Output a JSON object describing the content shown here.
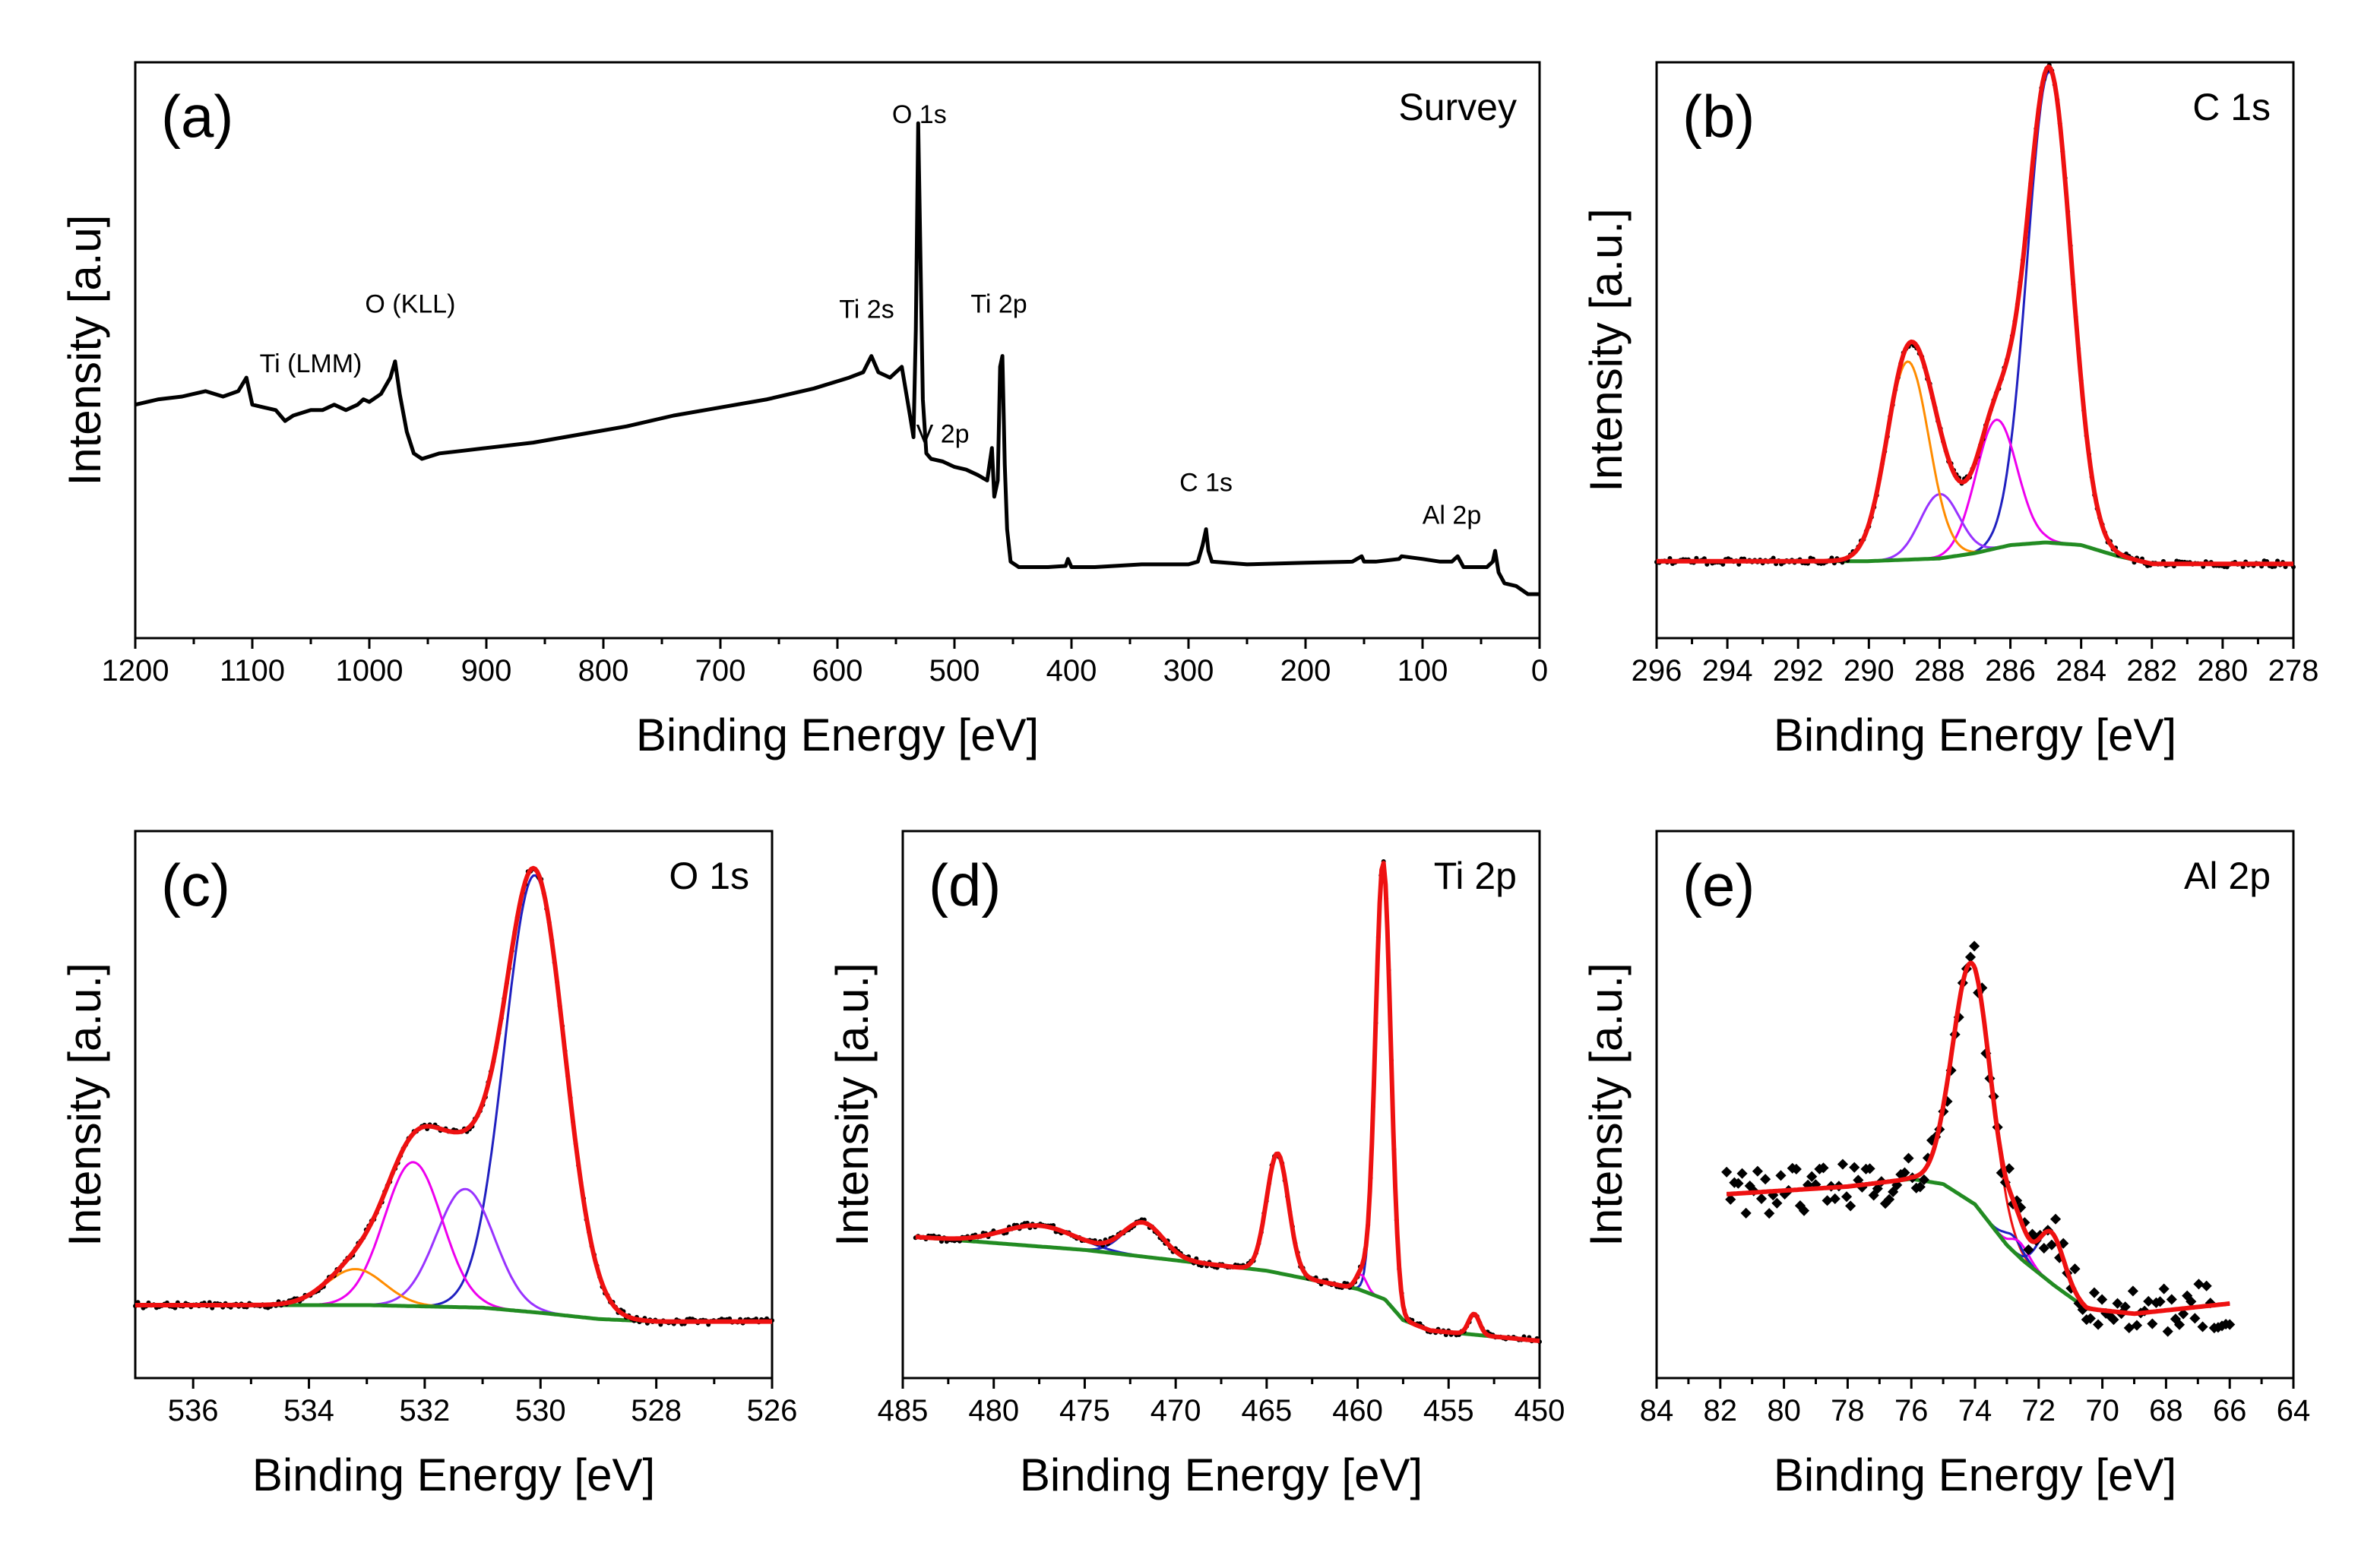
{
  "chart_data": [
    {
      "id": "a",
      "type": "line",
      "panel_label": "(a)",
      "corner_label": "Survey",
      "xlabel": "Binding Energy [eV]",
      "ylabel": "Intensity [a.u]",
      "xlim": [
        1200,
        0
      ],
      "ylim": [
        0,
        100
      ],
      "xticks": [
        1200,
        1100,
        1000,
        900,
        800,
        700,
        600,
        500,
        400,
        300,
        200,
        100,
        0
      ],
      "tick_labels": [
        "1200",
        "1100",
        "1000",
        "900",
        "800",
        "700",
        "600",
        "500",
        "400",
        "300",
        "200",
        "100",
        "0"
      ],
      "peak_labels": [
        {
          "text": "O 1s",
          "x": 530,
          "y": 93
        },
        {
          "text": "O (KLL)",
          "x": 965,
          "y": 58
        },
        {
          "text": "Ti (LMM)",
          "x": 1050,
          "y": 47
        },
        {
          "text": "Ti 2s",
          "x": 575,
          "y": 57
        },
        {
          "text": "Ti 2p",
          "x": 462,
          "y": 58
        },
        {
          "text": "V 2p",
          "x": 510,
          "y": 34
        },
        {
          "text": "C 1s",
          "x": 285,
          "y": 25
        },
        {
          "text": "Al 2p",
          "x": 75,
          "y": 19
        }
      ],
      "series": [
        {
          "name": "Survey",
          "color": "#000000",
          "points": [
            [
              1200,
              41
            ],
            [
              1180,
              42
            ],
            [
              1160,
              42.5
            ],
            [
              1140,
              43.5
            ],
            [
              1125,
              42.5
            ],
            [
              1112,
              43.5
            ],
            [
              1105,
              46
            ],
            [
              1100,
              41
            ],
            [
              1090,
              40.5
            ],
            [
              1080,
              40
            ],
            [
              1072,
              38
            ],
            [
              1065,
              39
            ],
            [
              1050,
              40
            ],
            [
              1040,
              40
            ],
            [
              1030,
              41
            ],
            [
              1020,
              40
            ],
            [
              1010,
              41
            ],
            [
              1005,
              42
            ],
            [
              1000,
              41.5
            ],
            [
              990,
              43
            ],
            [
              982,
              46
            ],
            [
              978,
              49
            ],
            [
              974,
              43
            ],
            [
              968,
              36
            ],
            [
              962,
              32
            ],
            [
              955,
              31
            ],
            [
              940,
              32
            ],
            [
              920,
              32.5
            ],
            [
              900,
              33
            ],
            [
              860,
              34
            ],
            [
              820,
              35.5
            ],
            [
              780,
              37
            ],
            [
              740,
              39
            ],
            [
              700,
              40.5
            ],
            [
              660,
              42
            ],
            [
              620,
              44
            ],
            [
              590,
              46
            ],
            [
              578,
              47
            ],
            [
              571,
              50
            ],
            [
              565,
              47
            ],
            [
              555,
              46
            ],
            [
              545,
              48
            ],
            [
              538,
              39
            ],
            [
              535,
              35
            ],
            [
              533,
              55
            ],
            [
              531,
              93
            ],
            [
              529,
              68
            ],
            [
              527,
              42
            ],
            [
              524,
              32
            ],
            [
              520,
              31
            ],
            [
              510,
              30.5
            ],
            [
              500,
              29.5
            ],
            [
              490,
              29
            ],
            [
              480,
              28
            ],
            [
              472,
              27
            ],
            [
              468,
              33
            ],
            [
              466,
              24
            ],
            [
              463,
              27
            ],
            [
              461,
              48
            ],
            [
              459,
              50
            ],
            [
              457,
              30
            ],
            [
              455,
              18
            ],
            [
              452,
              12
            ],
            [
              445,
              11
            ],
            [
              420,
              11
            ],
            [
              405,
              11.2
            ],
            [
              403,
              12.5
            ],
            [
              400,
              11
            ],
            [
              380,
              11
            ],
            [
              340,
              11.5
            ],
            [
              300,
              11.5
            ],
            [
              292,
              12
            ],
            [
              288,
              15
            ],
            [
              285,
              18
            ],
            [
              283,
              14
            ],
            [
              280,
              12
            ],
            [
              250,
              11.5
            ],
            [
              200,
              11.8
            ],
            [
              160,
              12
            ],
            [
              152,
              13
            ],
            [
              150,
              12
            ],
            [
              140,
              12
            ],
            [
              120,
              12.5
            ],
            [
              118,
              13
            ],
            [
              100,
              12.5
            ],
            [
              85,
              12
            ],
            [
              75,
              12
            ],
            [
              70,
              13
            ],
            [
              65,
              11
            ],
            [
              55,
              11
            ],
            [
              45,
              11
            ],
            [
              40,
              12
            ],
            [
              38,
              14
            ],
            [
              35,
              10
            ],
            [
              30,
              8
            ],
            [
              20,
              7.5
            ],
            [
              10,
              6
            ],
            [
              0,
              6
            ]
          ]
        }
      ]
    },
    {
      "id": "b",
      "type": "line",
      "panel_label": "(b)",
      "corner_label": "C 1s",
      "xlabel": "Binding Energy [eV]",
      "ylabel": "Intensity [a.u.]",
      "xlim": [
        296,
        278
      ],
      "ylim": [
        0,
        100
      ],
      "xticks": [
        296,
        294,
        292,
        290,
        288,
        286,
        284,
        282,
        280,
        278
      ],
      "tick_labels": [
        "296",
        "294",
        "292",
        "290",
        "288",
        "286",
        "284",
        "282",
        "280",
        "278"
      ],
      "background": [
        [
          296,
          9
        ],
        [
          290,
          9
        ],
        [
          288,
          9.5
        ],
        [
          287,
          10.5
        ],
        [
          286,
          12
        ],
        [
          285,
          12.5
        ],
        [
          284,
          12
        ],
        [
          283,
          10
        ],
        [
          282,
          8.5
        ],
        [
          278,
          8.5
        ]
      ],
      "components": [
        {
          "center": 284.9,
          "height": 88,
          "width": 0.62,
          "color": "#2020c0"
        },
        {
          "center": 286.4,
          "height": 24,
          "width": 0.58,
          "color": "#ee00ee"
        },
        {
          "center": 288.0,
          "height": 12,
          "width": 0.55,
          "color": "#9933ff"
        },
        {
          "center": 288.9,
          "height": 37,
          "width": 0.6,
          "color": "#ff8c00"
        }
      ],
      "envelope_color": "#ee1111",
      "background_color": "#228b22",
      "points_color": "#000000"
    },
    {
      "id": "c",
      "type": "line",
      "panel_label": "(c)",
      "corner_label": "O 1s",
      "xlabel": "Binding Energy [eV]",
      "ylabel": "Intensity [a.u.]",
      "xlim": [
        537,
        526
      ],
      "ylim": [
        0,
        100
      ],
      "xticks": [
        536,
        534,
        532,
        530,
        528,
        526
      ],
      "tick_labels": [
        "536",
        "534",
        "532",
        "530",
        "528",
        "526"
      ],
      "background": [
        [
          537,
          11
        ],
        [
          533,
          11
        ],
        [
          531,
          10.5
        ],
        [
          530,
          9.5
        ],
        [
          529,
          8.3
        ],
        [
          528,
          7.8
        ],
        [
          526,
          7.8
        ]
      ],
      "components": [
        {
          "center": 530.1,
          "height": 85,
          "width": 0.52,
          "color": "#2020c0"
        },
        {
          "center": 531.3,
          "height": 23,
          "width": 0.5,
          "color": "#9933ff"
        },
        {
          "center": 532.2,
          "height": 28,
          "width": 0.5,
          "color": "#ee00ee"
        },
        {
          "center": 533.2,
          "height": 7,
          "width": 0.5,
          "color": "#ff8c00"
        }
      ],
      "envelope_color": "#ee1111",
      "background_color": "#228b22",
      "points_color": "#000000"
    },
    {
      "id": "d",
      "type": "line",
      "panel_label": "(d)",
      "corner_label": "Ti 2p",
      "xlabel": "Binding Energy [eV]",
      "ylabel": "Intensity [a.u.]",
      "xlim": [
        485,
        450
      ],
      "ylim": [
        0,
        100
      ],
      "xticks": [
        485,
        480,
        475,
        470,
        465,
        460,
        455,
        450
      ],
      "tick_labels": [
        "485",
        "480",
        "475",
        "470",
        "465",
        "460",
        "455",
        "450"
      ],
      "background": [
        [
          484.3,
          24
        ],
        [
          475,
          21.5
        ],
        [
          465,
          17.5
        ],
        [
          460,
          14
        ],
        [
          458.5,
          12
        ],
        [
          457.5,
          8
        ],
        [
          456,
          6
        ],
        [
          450,
          4
        ]
      ],
      "components": [
        {
          "center": 458.6,
          "height": 84,
          "width": 0.42,
          "color": "#2020c0"
        },
        {
          "center": 464.4,
          "height": 23,
          "width": 0.6,
          "color": "#2020c0"
        },
        {
          "center": 471.8,
          "height": 6.5,
          "width": 1.1,
          "color": "#2020c0"
        },
        {
          "center": 477.5,
          "height": 4,
          "width": 2.0,
          "color": "#2020c0"
        },
        {
          "center": 459.8,
          "height": 3,
          "width": 0.3,
          "color": "#ee00ee"
        },
        {
          "center": 453.6,
          "height": 4,
          "width": 0.3,
          "color": "#ee00ee"
        }
      ],
      "envelope_color": "#ee1111",
      "background_color": "#228b22",
      "points_color": "#000000"
    },
    {
      "id": "e",
      "type": "line",
      "panel_label": "(e)",
      "corner_label": "Al 2p",
      "xlabel": "Binding Energy [eV]",
      "ylabel": "Intensity [a.u.]",
      "xlim": [
        84,
        64
      ],
      "ylim": [
        0,
        100
      ],
      "xticks": [
        84,
        82,
        80,
        78,
        76,
        74,
        72,
        70,
        68,
        66,
        64
      ],
      "tick_labels": [
        "84",
        "82",
        "80",
        "78",
        "76",
        "74",
        "72",
        "70",
        "68",
        "66",
        "64"
      ],
      "background": [
        [
          81.8,
          34
        ],
        [
          78,
          35.5
        ],
        [
          76,
          37
        ],
        [
          75,
          36
        ],
        [
          74,
          32
        ],
        [
          73,
          24
        ],
        [
          72.5,
          21
        ],
        [
          71.5,
          16
        ],
        [
          70.5,
          11.5
        ],
        [
          69,
          10.5
        ],
        [
          66,
          12.5
        ]
      ],
      "components": [
        {
          "center": 74.1,
          "height": 47,
          "width": 0.6,
          "color": "#ee1111"
        },
        {
          "center": 72.8,
          "height": 3,
          "width": 0.3,
          "color": "#2020c0"
        },
        {
          "center": 71.6,
          "height": 10,
          "width": 0.4,
          "color": "#2020c0"
        },
        {
          "center": 72.6,
          "height": 3,
          "width": 0.3,
          "color": "#ee00ee"
        }
      ],
      "envelope_color": "#ee1111",
      "background_color": "#228b22",
      "points_color": "#000000"
    }
  ]
}
